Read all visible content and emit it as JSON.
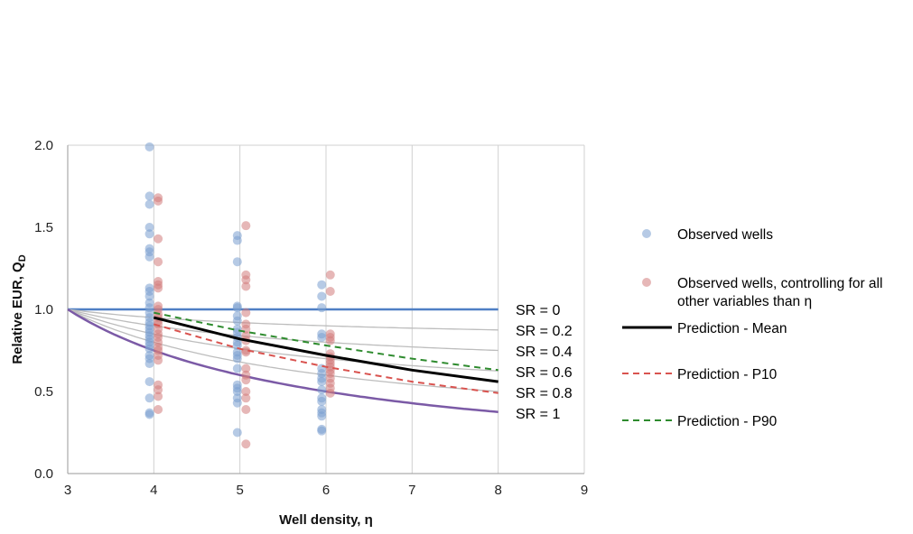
{
  "chart_data": {
    "type": "scatter",
    "title": "",
    "xlabel": "Well density, η",
    "ylabel_main": "Relative EUR, Q",
    "ylabel_sub": "D",
    "xlim": [
      3,
      9
    ],
    "ylim": [
      0,
      2
    ],
    "xticks": [
      "3",
      "4",
      "5",
      "6",
      "7",
      "8",
      "9"
    ],
    "yticks": [
      "0.0",
      "0.5",
      "1.0",
      "1.5",
      "2.0"
    ],
    "grid": "vertical",
    "legend_position": "right",
    "colors": {
      "observed": "#7a9fd0",
      "controlled": "#d27b7b",
      "mean": "#000000",
      "p10": "#d9534f",
      "p90": "#2e8b2e",
      "sr_zero": "#4f7fc4",
      "sr_one": "#7b5aa6",
      "sr_mid": "#bdbdbd",
      "grid": "#d0d0d0"
    },
    "sr_curves": [
      {
        "label": "SR = 0",
        "sr": 0
      },
      {
        "label": "SR = 0.2",
        "sr": 0.2
      },
      {
        "label": "SR = 0.4",
        "sr": 0.4
      },
      {
        "label": "SR = 0.6",
        "sr": 0.6
      },
      {
        "label": "SR = 0.8",
        "sr": 0.8
      },
      {
        "label": "SR = 1",
        "sr": 1
      }
    ],
    "series": [
      {
        "name": "Observed wells",
        "kind": "scatter",
        "points": [
          [
            3.95,
            1.99
          ],
          [
            3.95,
            1.69
          ],
          [
            3.95,
            1.64
          ],
          [
            3.95,
            1.5
          ],
          [
            3.95,
            1.46
          ],
          [
            3.95,
            1.37
          ],
          [
            3.95,
            1.35
          ],
          [
            3.95,
            1.32
          ],
          [
            3.95,
            1.13
          ],
          [
            3.95,
            1.11
          ],
          [
            3.95,
            1.08
          ],
          [
            3.95,
            1.04
          ],
          [
            3.95,
            1.01
          ],
          [
            3.95,
            0.98
          ],
          [
            3.95,
            0.95
          ],
          [
            3.95,
            0.92
          ],
          [
            3.95,
            0.9
          ],
          [
            3.95,
            0.88
          ],
          [
            3.95,
            0.86
          ],
          [
            3.95,
            0.84
          ],
          [
            3.95,
            0.82
          ],
          [
            3.95,
            0.8
          ],
          [
            3.95,
            0.78
          ],
          [
            3.95,
            0.76
          ],
          [
            3.95,
            0.72
          ],
          [
            3.95,
            0.7
          ],
          [
            3.95,
            0.67
          ],
          [
            3.95,
            0.56
          ],
          [
            3.95,
            0.46
          ],
          [
            3.95,
            0.37
          ],
          [
            3.95,
            0.36
          ],
          [
            4.97,
            1.45
          ],
          [
            4.97,
            1.42
          ],
          [
            4.97,
            1.29
          ],
          [
            4.97,
            1.02
          ],
          [
            4.97,
            1.01
          ],
          [
            4.97,
            0.96
          ],
          [
            4.97,
            0.93
          ],
          [
            4.97,
            0.88
          ],
          [
            4.97,
            0.86
          ],
          [
            4.97,
            0.83
          ],
          [
            4.97,
            0.8
          ],
          [
            4.97,
            0.78
          ],
          [
            4.97,
            0.74
          ],
          [
            4.97,
            0.72
          ],
          [
            4.97,
            0.7
          ],
          [
            4.97,
            0.64
          ],
          [
            4.97,
            0.54
          ],
          [
            4.97,
            0.52
          ],
          [
            4.97,
            0.5
          ],
          [
            4.97,
            0.46
          ],
          [
            4.97,
            0.43
          ],
          [
            4.97,
            0.25
          ],
          [
            5.95,
            1.15
          ],
          [
            5.95,
            1.08
          ],
          [
            5.95,
            1.01
          ],
          [
            5.95,
            0.85
          ],
          [
            5.95,
            0.83
          ],
          [
            5.95,
            0.64
          ],
          [
            5.95,
            0.61
          ],
          [
            5.95,
            0.58
          ],
          [
            5.95,
            0.56
          ],
          [
            5.95,
            0.51
          ],
          [
            5.95,
            0.46
          ],
          [
            5.95,
            0.44
          ],
          [
            5.95,
            0.39
          ],
          [
            5.95,
            0.37
          ],
          [
            5.95,
            0.35
          ],
          [
            5.95,
            0.27
          ],
          [
            5.95,
            0.26
          ]
        ]
      },
      {
        "name": "Observed wells, controlling for all other variables than η",
        "kind": "scatter",
        "points": [
          [
            4.05,
            1.68
          ],
          [
            4.05,
            1.66
          ],
          [
            4.05,
            1.43
          ],
          [
            4.05,
            1.29
          ],
          [
            4.05,
            1.17
          ],
          [
            4.05,
            1.15
          ],
          [
            4.05,
            1.13
          ],
          [
            4.05,
            1.02
          ],
          [
            4.05,
            1.0
          ],
          [
            4.05,
            0.97
          ],
          [
            4.05,
            0.95
          ],
          [
            4.05,
            0.93
          ],
          [
            4.05,
            0.91
          ],
          [
            4.05,
            0.88
          ],
          [
            4.05,
            0.85
          ],
          [
            4.05,
            0.83
          ],
          [
            4.05,
            0.8
          ],
          [
            4.05,
            0.77
          ],
          [
            4.05,
            0.75
          ],
          [
            4.05,
            0.72
          ],
          [
            4.05,
            0.69
          ],
          [
            4.05,
            0.54
          ],
          [
            4.05,
            0.51
          ],
          [
            4.05,
            0.47
          ],
          [
            4.05,
            0.39
          ],
          [
            5.07,
            1.51
          ],
          [
            5.07,
            1.21
          ],
          [
            5.07,
            1.18
          ],
          [
            5.07,
            1.14
          ],
          [
            5.07,
            0.98
          ],
          [
            5.07,
            0.91
          ],
          [
            5.07,
            0.88
          ],
          [
            5.07,
            0.84
          ],
          [
            5.07,
            0.81
          ],
          [
            5.07,
            0.75
          ],
          [
            5.07,
            0.74
          ],
          [
            5.07,
            0.64
          ],
          [
            5.07,
            0.6
          ],
          [
            5.07,
            0.57
          ],
          [
            5.07,
            0.5
          ],
          [
            5.07,
            0.46
          ],
          [
            5.07,
            0.39
          ],
          [
            5.07,
            0.18
          ],
          [
            6.05,
            1.21
          ],
          [
            6.05,
            1.11
          ],
          [
            6.05,
            0.85
          ],
          [
            6.05,
            0.83
          ],
          [
            6.05,
            0.81
          ],
          [
            6.05,
            0.73
          ],
          [
            6.05,
            0.71
          ],
          [
            6.05,
            0.69
          ],
          [
            6.05,
            0.67
          ],
          [
            6.05,
            0.65
          ],
          [
            6.05,
            0.63
          ],
          [
            6.05,
            0.61
          ],
          [
            6.05,
            0.58
          ],
          [
            6.05,
            0.55
          ],
          [
            6.05,
            0.52
          ],
          [
            6.05,
            0.49
          ]
        ]
      },
      {
        "name": "Prediction - Mean",
        "kind": "line",
        "points": [
          [
            4,
            0.95
          ],
          [
            5,
            0.82
          ],
          [
            6,
            0.72
          ],
          [
            7,
            0.63
          ],
          [
            8,
            0.56
          ]
        ]
      },
      {
        "name": "Prediction - P10",
        "kind": "line",
        "points": [
          [
            4,
            0.91
          ],
          [
            5,
            0.76
          ],
          [
            6,
            0.65
          ],
          [
            7,
            0.56
          ],
          [
            8,
            0.49
          ]
        ]
      },
      {
        "name": "Prediction - P90",
        "kind": "line",
        "points": [
          [
            4,
            0.98
          ],
          [
            5,
            0.87
          ],
          [
            6,
            0.78
          ],
          [
            7,
            0.7
          ],
          [
            8,
            0.63
          ]
        ]
      }
    ]
  }
}
